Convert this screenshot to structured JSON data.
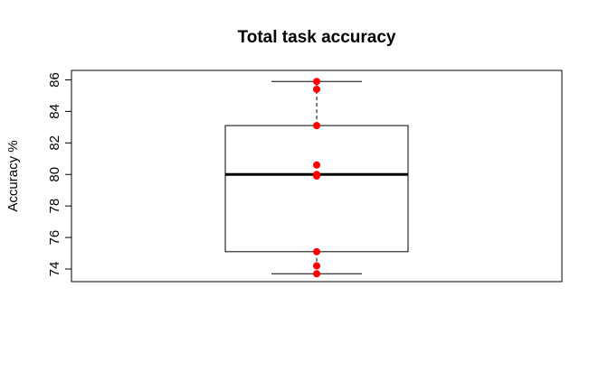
{
  "chart_data": {
    "type": "box",
    "title": "Total task accuracy",
    "xlabel": "",
    "ylabel": "Accuracy %",
    "ylim": [
      73.2,
      86.6
    ],
    "yticks": [
      74,
      76,
      78,
      80,
      82,
      84,
      86
    ],
    "grid": false,
    "box": {
      "min": 73.7,
      "q1": 75.1,
      "median": 80.0,
      "q3": 83.1,
      "max": 85.9
    },
    "points": [
      85.9,
      85.4,
      83.1,
      80.6,
      80.0,
      79.9,
      75.1,
      74.2,
      73.7
    ],
    "point_color": "#ff0000"
  }
}
